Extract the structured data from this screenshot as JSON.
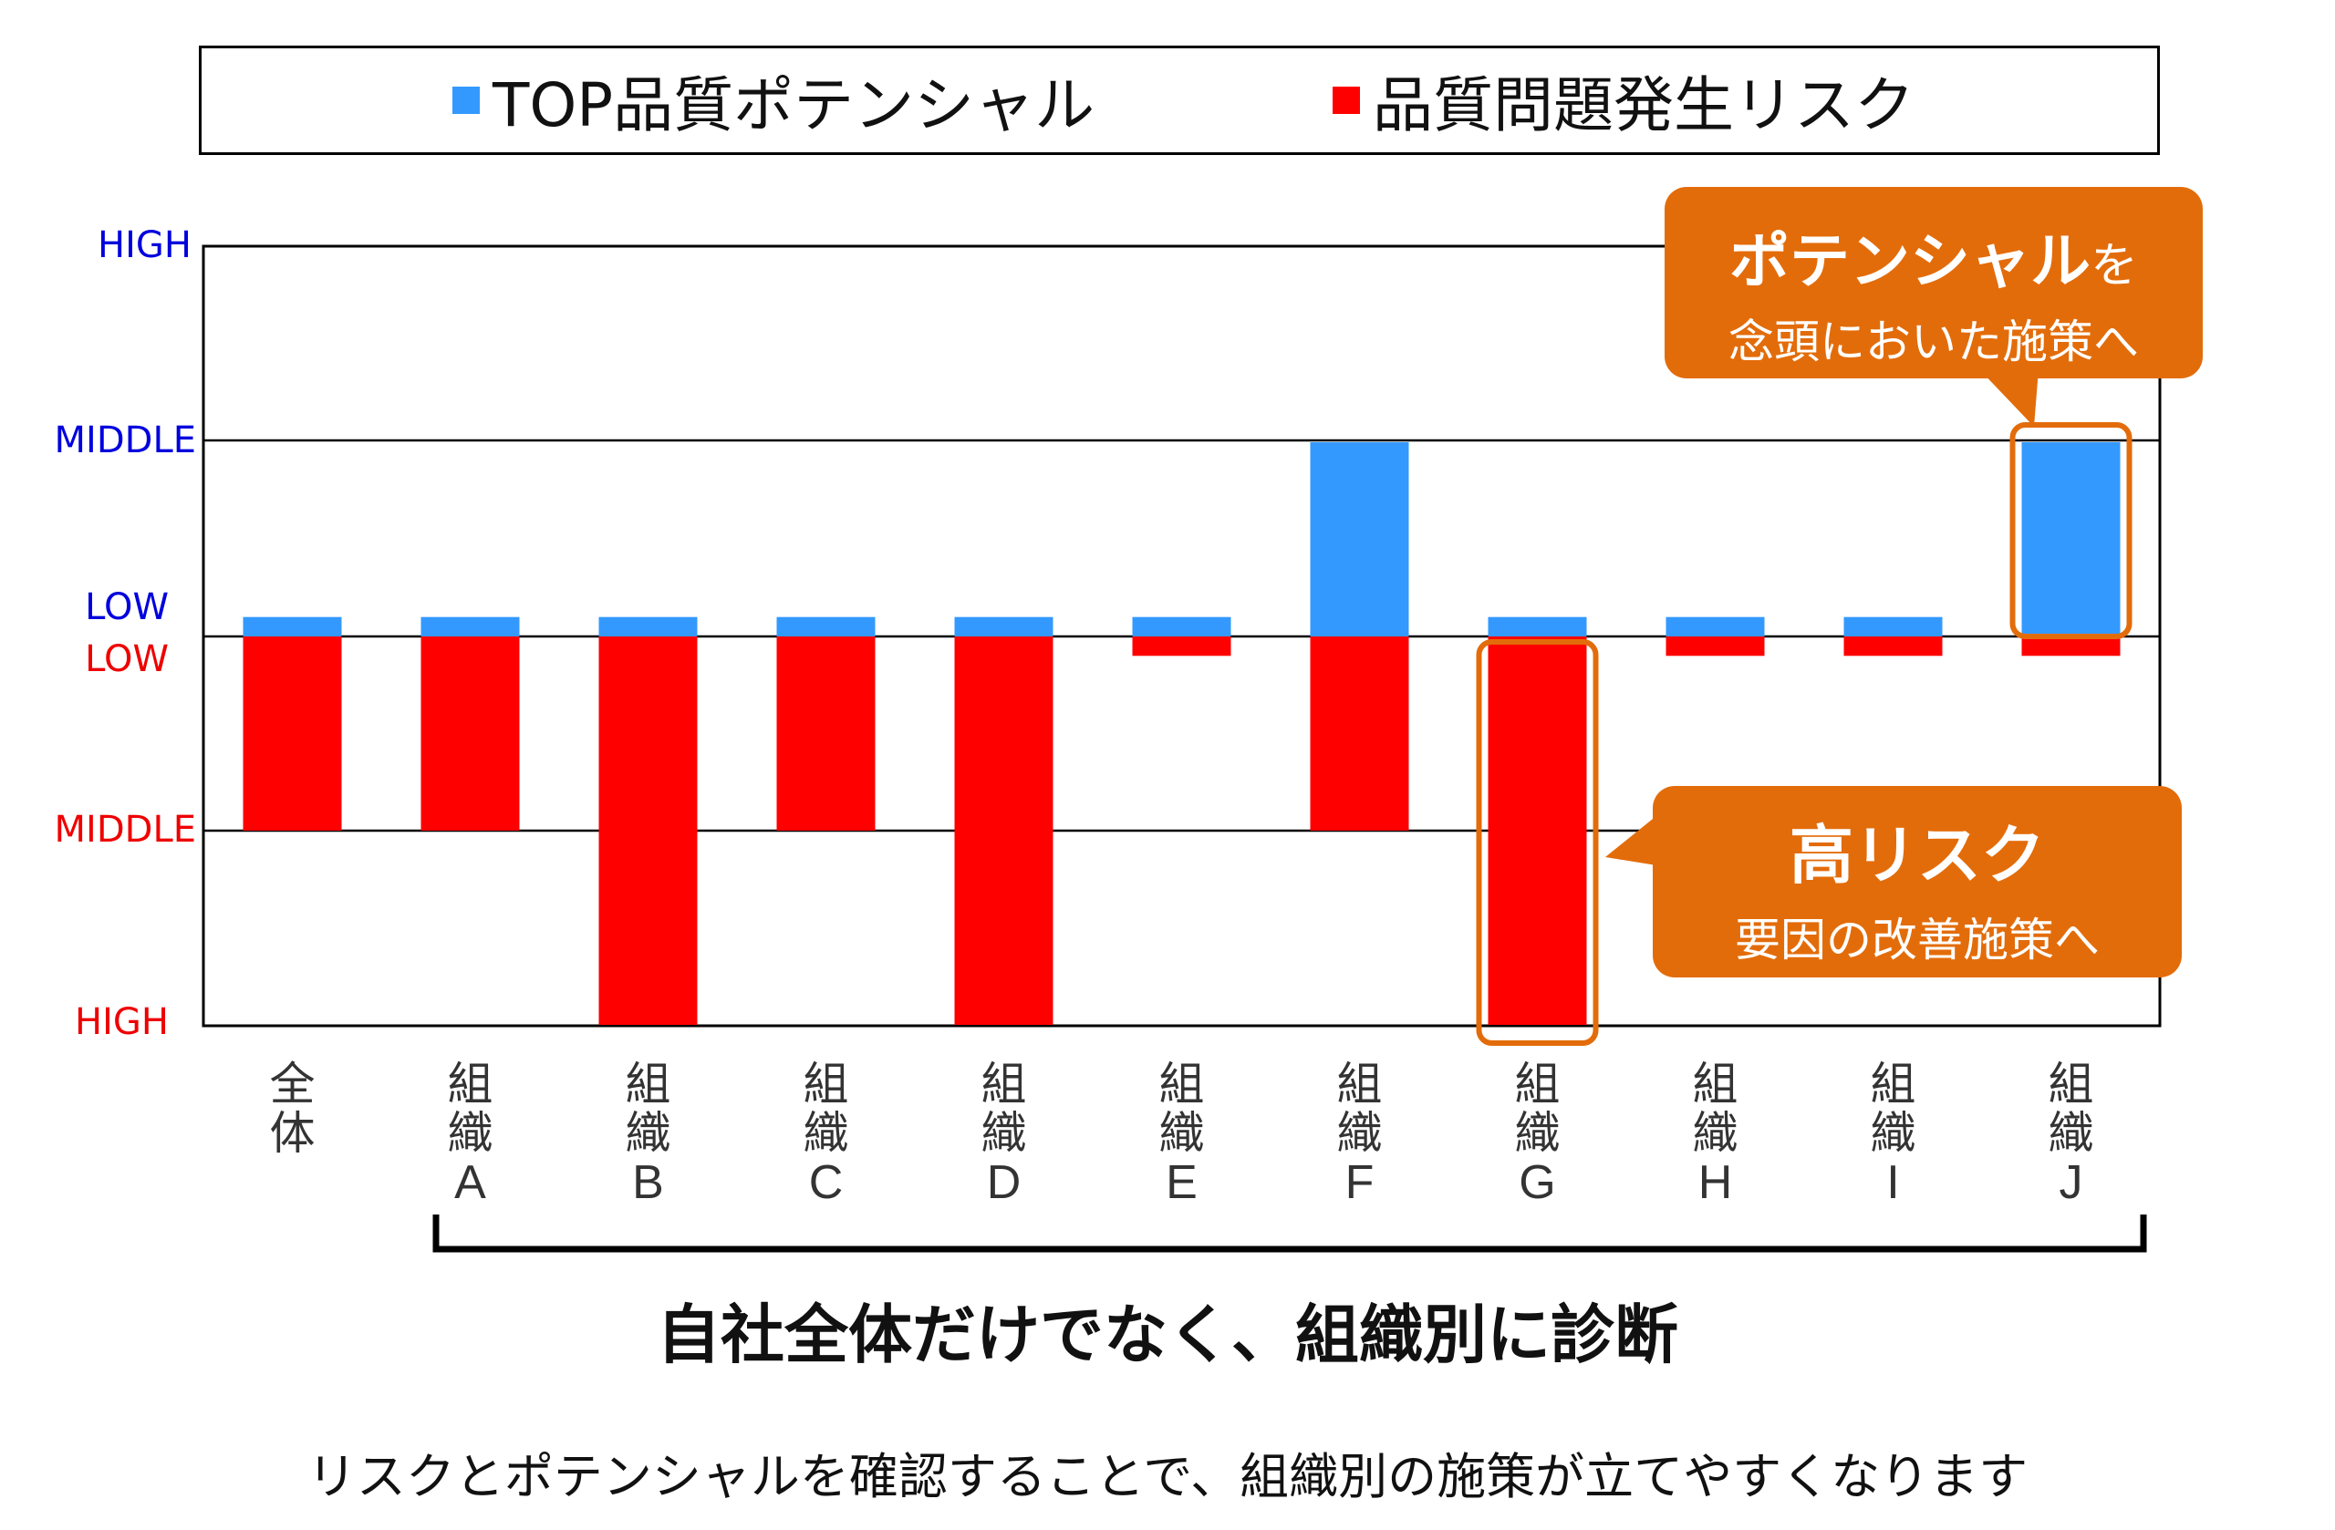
{
  "colors": {
    "potential": "#3399ff",
    "risk": "#ff0000",
    "callout": "#e36c0a",
    "axis_top": "#0000dd",
    "axis_bottom": "#ee0000"
  },
  "legend": {
    "potential_label": "TOP品質ポテンシャル",
    "risk_label": "品質問題発生リスク"
  },
  "axis": {
    "top": [
      "HIGH",
      "MIDDLE",
      "LOW"
    ],
    "bottom": [
      "LOW",
      "MIDDLE",
      "HIGH"
    ]
  },
  "callouts": {
    "potential": {
      "line1": "ポテンシャル",
      "line1_suffix": "を",
      "line2": "念頭においた施策へ"
    },
    "risk": {
      "line1": "高リスク",
      "line2": "要因の改善施策へ"
    }
  },
  "subtitle": "自社全体だけでなく、組織別に診断",
  "caption": "リスクとポテンシャルを確認することで、組織別の施策が立てやすくなります",
  "chart_data": {
    "type": "bar",
    "categories": [
      "全体",
      "組織A",
      "組織B",
      "組織C",
      "組織D",
      "組織E",
      "組織F",
      "組織G",
      "組織H",
      "組織I",
      "組織J"
    ],
    "category_lines": [
      [
        "全",
        "体"
      ],
      [
        "組",
        "織",
        "A"
      ],
      [
        "組",
        "織",
        "B"
      ],
      [
        "組",
        "織",
        "C"
      ],
      [
        "組",
        "織",
        "D"
      ],
      [
        "組",
        "織",
        "E"
      ],
      [
        "組",
        "織",
        "F"
      ],
      [
        "組",
        "織",
        "G"
      ],
      [
        "組",
        "織",
        "H"
      ],
      [
        "組",
        "織",
        "I"
      ],
      [
        "組",
        "織",
        "J"
      ]
    ],
    "series": [
      {
        "name": "TOP品質ポテンシャル",
        "direction": "up",
        "values": [
          0.1,
          0.1,
          0.1,
          0.1,
          0.1,
          0.1,
          1.0,
          0.1,
          0.1,
          0.1,
          1.0
        ]
      },
      {
        "name": "品質問題発生リスク",
        "direction": "down",
        "values": [
          1.0,
          1.0,
          2.0,
          1.0,
          2.0,
          0.1,
          1.0,
          2.0,
          0.1,
          0.1,
          0.1
        ]
      }
    ],
    "scale": "LOW → MIDDLE → HIGH (two-sided axis)",
    "highlighted": [
      "組織G",
      "組織J"
    ],
    "grid": true
  }
}
